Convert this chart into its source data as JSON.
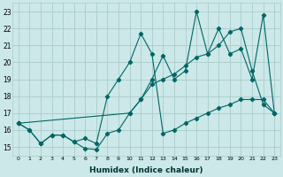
{
  "bg_color": "#cce8e8",
  "grid_color": "#aacccc",
  "line_color": "#006666",
  "xlabel": "Humidex (Indice chaleur)",
  "xlim": [
    -0.5,
    23.5
  ],
  "ylim": [
    14.5,
    23.5
  ],
  "yticks": [
    15,
    16,
    17,
    18,
    19,
    20,
    21,
    22,
    23
  ],
  "xticks": [
    0,
    1,
    2,
    3,
    4,
    5,
    6,
    7,
    8,
    9,
    10,
    11,
    12,
    13,
    14,
    15,
    16,
    17,
    18,
    19,
    20,
    21,
    22,
    23
  ],
  "line1_x": [
    0,
    1,
    2,
    3,
    4,
    5,
    6,
    7,
    8,
    9,
    10,
    11,
    12,
    13,
    14,
    15,
    16,
    17,
    18,
    19,
    20,
    21,
    22,
    23
  ],
  "line1_y": [
    16.4,
    16.0,
    15.2,
    15.7,
    15.7,
    15.3,
    15.5,
    15.2,
    18.0,
    19.0,
    20.0,
    21.7,
    20.5,
    15.8,
    16.0,
    16.4,
    16.7,
    17.0,
    17.3,
    17.5,
    17.8,
    17.8,
    17.8,
    17.0
  ],
  "line2_x": [
    0,
    1,
    2,
    3,
    4,
    5,
    6,
    7,
    8,
    9,
    10,
    11,
    12,
    13,
    14,
    15,
    16,
    17,
    18,
    19,
    20,
    21,
    22,
    23
  ],
  "line2_y": [
    16.4,
    16.0,
    15.2,
    15.7,
    15.7,
    15.3,
    14.9,
    14.85,
    15.8,
    16.0,
    17.0,
    17.8,
    18.7,
    19.0,
    19.3,
    19.8,
    20.3,
    20.5,
    21.0,
    21.8,
    22.0,
    19.5,
    17.5,
    17.0
  ],
  "line3_x": [
    0,
    10,
    11,
    12,
    13,
    14,
    15,
    16,
    17,
    18,
    19,
    20,
    21,
    22,
    23
  ],
  "line3_y": [
    16.4,
    17.0,
    17.8,
    19.0,
    20.4,
    19.0,
    19.5,
    23.0,
    20.5,
    22.0,
    20.5,
    20.8,
    19.0,
    22.8,
    17.0
  ]
}
